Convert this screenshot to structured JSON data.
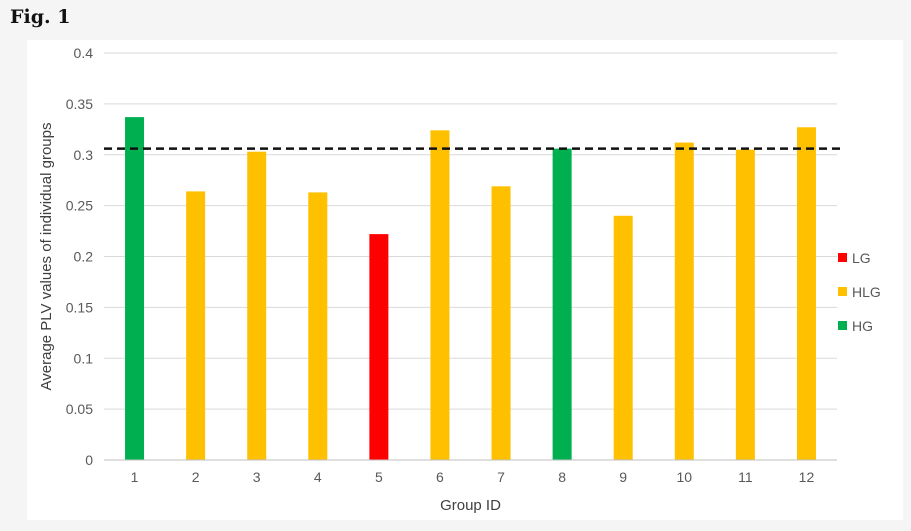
{
  "figure": {
    "label": "Fig. 1"
  },
  "colors": {
    "LG": "#ff0000",
    "HLG": "#ffc000",
    "HG": "#00b050",
    "threshold": "#111111",
    "grid": "#d9d9d9"
  },
  "chart_data": {
    "type": "bar",
    "title": "",
    "xlabel": "Group ID",
    "ylabel": "Average PLV values of individual groups",
    "ylim": [
      0,
      0.4
    ],
    "yticks": [
      "0",
      "0.05",
      "0.1",
      "0.15",
      "0.2",
      "0.25",
      "0.3",
      "0.35",
      "0.4"
    ],
    "categories": [
      "1",
      "2",
      "3",
      "4",
      "5",
      "6",
      "7",
      "8",
      "9",
      "10",
      "11",
      "12"
    ],
    "values": [
      0.337,
      0.264,
      0.303,
      0.263,
      0.222,
      0.324,
      0.269,
      0.306,
      0.24,
      0.312,
      0.305,
      0.327
    ],
    "groups": [
      "HG",
      "HLG",
      "HLG",
      "HLG",
      "LG",
      "HLG",
      "HLG",
      "HG",
      "HLG",
      "HLG",
      "HLG",
      "HLG"
    ],
    "threshold": 0.306,
    "grid": true,
    "legend": {
      "placement": "right",
      "entries": [
        "LG",
        "HLG",
        "HG"
      ]
    }
  }
}
